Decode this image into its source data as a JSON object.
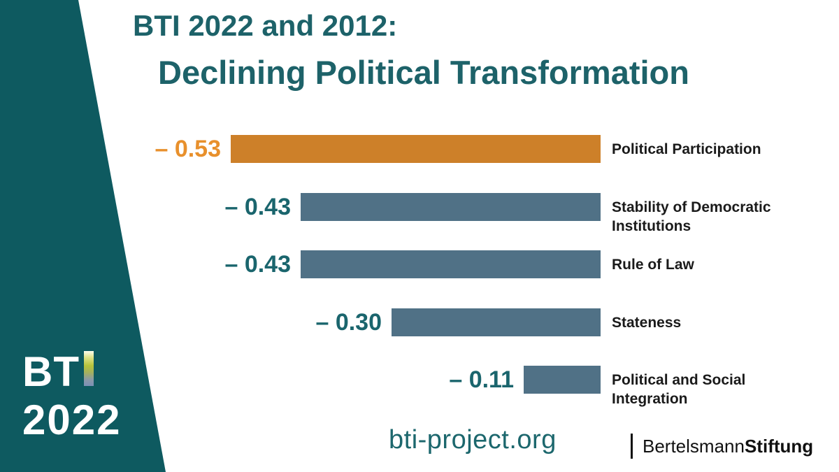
{
  "brand": {
    "wedge_color": "#0e5a60",
    "logo_bt": "BT",
    "logo_i_icon": "gradient-bar",
    "logo_year": "2022",
    "logo_i_gradient": [
      "#fdfdf0",
      "#b6c33b",
      "#7b90b5"
    ]
  },
  "title": {
    "line1": "BTI 2022 and 2012:",
    "line2": "Declining Political Transformation",
    "color": "#1d6269"
  },
  "footer": {
    "website": "bti-project.org",
    "publisher_pipe": "|",
    "publisher_name": "Bertelsmann",
    "publisher_suffix": "Stiftung"
  },
  "chart_data": {
    "type": "bar",
    "orientation": "horizontal",
    "title": "BTI 2022 and 2012: Declining Political Transformation",
    "categories": [
      "Political Participation",
      "Stability of Democratic Institutions",
      "Rule of Law",
      "Stateness",
      "Political and Social Integration"
    ],
    "category_lines": [
      [
        "Political Participation"
      ],
      [
        "Stability of Democratic",
        "Institutions"
      ],
      [
        "Rule of Law"
      ],
      [
        "Stateness"
      ],
      [
        "Political and Social",
        "Integration"
      ]
    ],
    "values": [
      -0.53,
      -0.43,
      -0.43,
      -0.3,
      -0.11
    ],
    "value_labels": [
      "– 0.53",
      "– 0.43",
      "– 0.43",
      "– 0.30",
      "– 0.11"
    ],
    "bar_colors": [
      "#cd8029",
      "#507186",
      "#507186",
      "#507186",
      "#507186"
    ],
    "value_label_colors": [
      "#e8902c",
      "#1a656d",
      "#1a656d",
      "#1a656d",
      "#1a656d"
    ],
    "highlight_index": 0,
    "highlight_color": "#cd8029",
    "default_bar_color": "#507186",
    "xlim": [
      -0.6,
      0
    ],
    "axis_visible": false,
    "grid": false,
    "legend": false,
    "bars_aligned": "right"
  }
}
